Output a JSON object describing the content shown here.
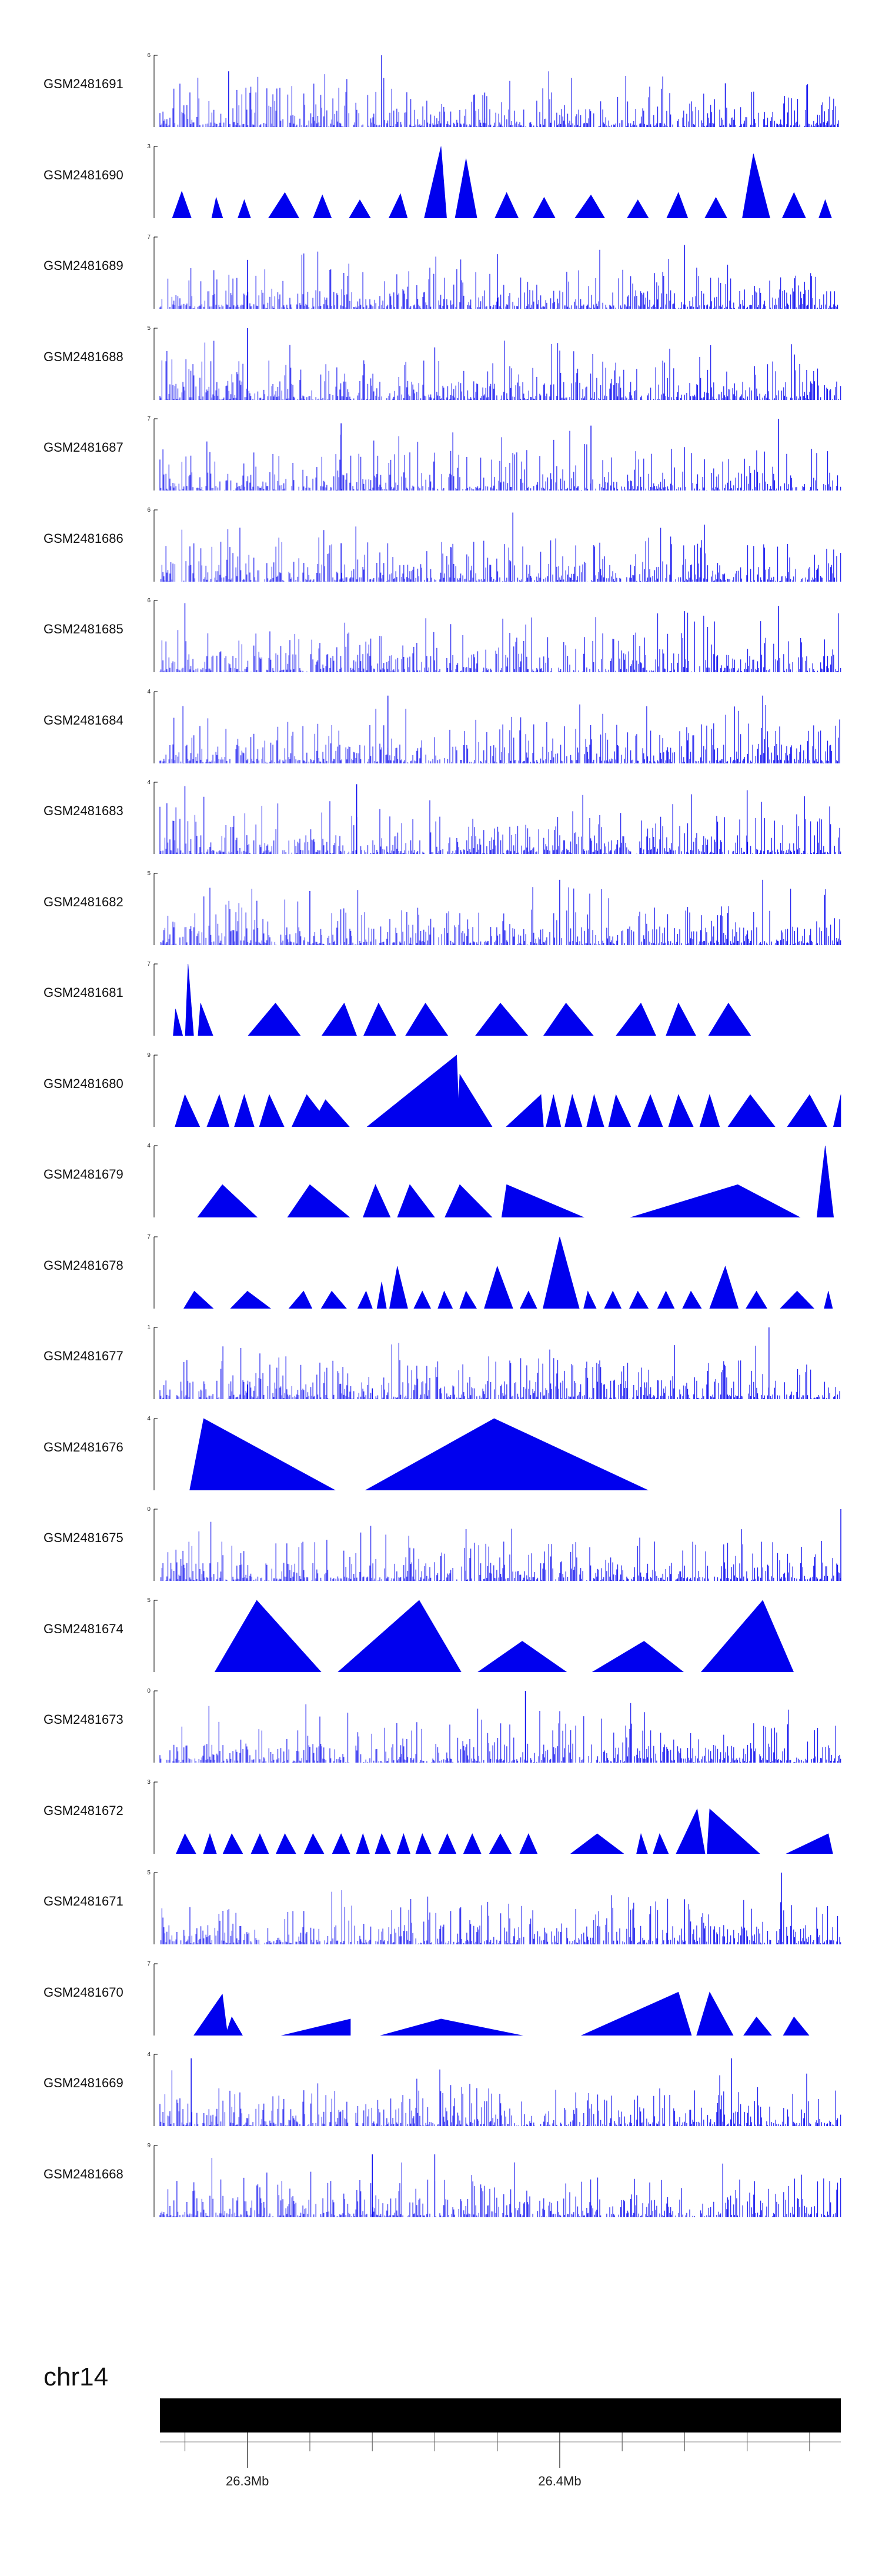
{
  "chromosome": "chr14",
  "colors": {
    "signal": "#0000ee",
    "axis": "#000000",
    "ideogram": "#000000",
    "background": "#ffffff"
  },
  "chart_data": {
    "type": "area",
    "title": "",
    "xlabel": "",
    "ylabel": "",
    "x_unit": "Mb",
    "xlim": [
      26.272,
      26.49
    ],
    "x_ticks": [
      {
        "value": 26.3,
        "label": "26.3Mb"
      },
      {
        "value": 26.4,
        "label": "26.4Mb"
      }
    ],
    "x_minor_ticks": [
      26.28,
      26.32,
      26.34,
      26.36,
      26.38,
      26.42,
      26.44,
      26.46,
      26.48
    ],
    "series": [
      {
        "name": "GSM2481691",
        "ylim": [
          0,
          6
        ],
        "style": "dense",
        "seed": 1,
        "spikes": [
          [
            26.294,
            4.8
          ],
          [
            26.343,
            6.0
          ],
          [
            26.376,
            3.2
          ],
          [
            26.453,
            3.9
          ]
        ]
      },
      {
        "name": "GSM2481690",
        "ylim": [
          0,
          33
        ],
        "style": "triangles",
        "seed": 2,
        "peaks": [
          [
            26.275,
            26.279,
            26.283,
            14.5
          ],
          [
            26.288,
            26.29,
            26.293,
            12.0
          ],
          [
            26.296,
            26.299,
            26.302,
            11.0
          ],
          [
            26.305,
            26.312,
            26.318,
            14.0
          ],
          [
            26.32,
            26.324,
            26.328,
            13.0
          ],
          [
            26.331,
            26.336,
            26.341,
            11.0
          ],
          [
            26.344,
            26.349,
            26.352,
            13.5
          ],
          [
            26.356,
            26.362,
            26.364,
            33.0
          ],
          [
            26.366,
            26.37,
            26.374,
            28.0
          ],
          [
            26.378,
            26.383,
            26.388,
            14.0
          ],
          [
            26.39,
            26.395,
            26.4,
            12.0
          ],
          [
            26.403,
            26.41,
            26.416,
            13.0
          ],
          [
            26.42,
            26.425,
            26.43,
            11.0
          ],
          [
            26.433,
            26.438,
            26.442,
            14.0
          ],
          [
            26.445,
            26.45,
            26.455,
            12.0
          ],
          [
            26.458,
            26.462,
            26.468,
            30.0
          ],
          [
            26.47,
            26.475,
            26.48,
            14.0
          ],
          [
            26.482,
            26.485,
            26.488,
            11.0
          ]
        ]
      },
      {
        "name": "GSM2481689",
        "ylim": [
          0,
          7
        ],
        "style": "dense",
        "seed": 3,
        "spikes": [
          [
            26.3,
            5.0
          ],
          [
            26.38,
            5.5
          ],
          [
            26.44,
            6.3
          ]
        ]
      },
      {
        "name": "GSM2481688",
        "ylim": [
          0,
          5
        ],
        "style": "dense",
        "seed": 4,
        "spikes": [
          [
            26.3,
            5.0
          ],
          [
            26.36,
            3.8
          ]
        ]
      },
      {
        "name": "GSM2481687",
        "ylim": [
          0,
          7
        ],
        "style": "dense",
        "seed": 5,
        "spikes": [
          [
            26.33,
            6.6
          ],
          [
            26.41,
            6.4
          ],
          [
            26.47,
            7.0
          ]
        ]
      },
      {
        "name": "GSM2481686",
        "ylim": [
          0,
          6
        ],
        "style": "dense",
        "seed": 6,
        "spikes": [
          [
            26.385,
            5.8
          ],
          [
            26.33,
            3.5
          ]
        ]
      },
      {
        "name": "GSM2481685",
        "ylim": [
          0,
          6
        ],
        "style": "dense",
        "seed": 7,
        "spikes": [
          [
            26.28,
            5.8
          ],
          [
            26.44,
            5.2
          ],
          [
            26.47,
            5.6
          ]
        ]
      },
      {
        "name": "GSM2481684",
        "ylim": [
          0,
          4
        ],
        "style": "dense",
        "seed": 8,
        "spikes": [
          [
            26.345,
            3.8
          ],
          [
            26.465,
            3.8
          ]
        ]
      },
      {
        "name": "GSM2481683",
        "ylim": [
          0,
          4
        ],
        "style": "dense",
        "seed": 9,
        "spikes": [
          [
            26.28,
            3.8
          ],
          [
            26.335,
            3.9
          ],
          [
            26.46,
            3.6
          ]
        ]
      },
      {
        "name": "GSM2481682",
        "ylim": [
          0,
          5
        ],
        "style": "dense",
        "seed": 10,
        "spikes": [
          [
            26.32,
            3.9
          ],
          [
            26.4,
            4.6
          ],
          [
            26.465,
            4.6
          ]
        ]
      },
      {
        "name": "GSM2481681",
        "ylim": [
          0,
          137
        ],
        "style": "triangles",
        "seed": 11,
        "peaks": [
          [
            26.276,
            26.277,
            26.28,
            60.0
          ],
          [
            26.28,
            26.281,
            26.283,
            137.0
          ],
          [
            26.284,
            26.285,
            26.29,
            70.0
          ],
          [
            26.298,
            26.309,
            26.319,
            70.0
          ],
          [
            26.322,
            26.331,
            26.336,
            70.0
          ],
          [
            26.336,
            26.342,
            26.349,
            70.0
          ],
          [
            26.349,
            26.357,
            26.366,
            70.0
          ],
          [
            26.371,
            26.381,
            26.392,
            70.0
          ],
          [
            26.393,
            26.402,
            26.413,
            70.0
          ],
          [
            26.416,
            26.426,
            26.432,
            70.0
          ],
          [
            26.433,
            26.438,
            26.445,
            70.0
          ],
          [
            26.446,
            26.454,
            26.463,
            70.0
          ]
        ]
      },
      {
        "name": "GSM2481680",
        "ylim": [
          0,
          79
        ],
        "style": "triangles",
        "seed": 12,
        "peaks": [
          [
            26.276,
            26.28,
            26.286,
            40.0
          ],
          [
            26.286,
            26.291,
            26.295,
            40.0
          ],
          [
            26.295,
            26.299,
            26.303,
            40.0
          ],
          [
            26.303,
            26.307,
            26.313,
            40.0
          ],
          [
            26.313,
            26.319,
            26.329,
            40.0
          ],
          [
            26.319,
            26.325,
            26.335,
            35.0
          ],
          [
            26.335,
            26.367,
            26.368,
            79.0
          ],
          [
            26.367,
            26.368,
            26.38,
            60.0
          ],
          [
            26.38,
            26.394,
            26.395,
            40.0
          ],
          [
            26.395,
            26.398,
            26.401,
            40.0
          ],
          [
            26.401,
            26.404,
            26.408,
            40.0
          ],
          [
            26.408,
            26.411,
            26.415,
            40.0
          ],
          [
            26.415,
            26.418,
            26.424,
            40.0
          ],
          [
            26.424,
            26.429,
            26.434,
            40.0
          ],
          [
            26.434,
            26.438,
            26.444,
            40.0
          ],
          [
            26.444,
            26.448,
            26.452,
            40.0
          ],
          [
            26.452,
            26.461,
            26.471,
            40.0
          ],
          [
            26.471,
            26.48,
            26.487,
            40.0
          ],
          [
            26.487,
            26.49,
            26.49,
            40.0
          ]
        ]
      },
      {
        "name": "GSM2481679",
        "ylim": [
          0,
          74
        ],
        "style": "triangles",
        "seed": 13,
        "peaks": [
          [
            26.282,
            26.292,
            26.306,
            38.0
          ],
          [
            26.311,
            26.32,
            26.336,
            38.0
          ],
          [
            26.336,
            26.341,
            26.347,
            38.0
          ],
          [
            26.347,
            26.352,
            26.362,
            38.0
          ],
          [
            26.362,
            26.368,
            26.381,
            38.0
          ],
          [
            26.381,
            26.383,
            26.414,
            38.0
          ],
          [
            26.414,
            26.457,
            26.482,
            38.0
          ],
          [
            26.482,
            26.485,
            26.488,
            74.0
          ]
        ]
      },
      {
        "name": "GSM2481678",
        "ylim": [
          0,
          87
        ],
        "style": "triangles",
        "seed": 14,
        "peaks": [
          [
            26.278,
            26.283,
            26.292,
            28.0
          ],
          [
            26.292,
            26.3,
            26.311,
            28.0
          ],
          [
            26.311,
            26.318,
            26.322,
            28.0
          ],
          [
            26.322,
            26.327,
            26.334,
            28.0
          ],
          [
            26.334,
            26.338,
            26.341,
            28.0
          ],
          [
            26.341,
            26.343,
            26.345,
            38.0
          ],
          [
            26.345,
            26.348,
            26.352,
            55.0
          ],
          [
            26.352,
            26.356,
            26.36,
            28.0
          ],
          [
            26.36,
            26.363,
            26.367,
            28.0
          ],
          [
            26.367,
            26.37,
            26.375,
            28.0
          ],
          [
            26.375,
            26.38,
            26.386,
            55.0
          ],
          [
            26.386,
            26.39,
            26.394,
            28.0
          ],
          [
            26.394,
            26.4,
            26.407,
            87.0
          ],
          [
            26.407,
            26.409,
            26.413,
            28.0
          ],
          [
            26.413,
            26.417,
            26.421,
            28.0
          ],
          [
            26.421,
            26.425,
            26.43,
            28.0
          ],
          [
            26.43,
            26.434,
            26.438,
            28.0
          ],
          [
            26.438,
            26.442,
            26.447,
            28.0
          ],
          [
            26.447,
            26.453,
            26.458,
            55.0
          ],
          [
            26.458,
            26.463,
            26.468,
            28.0
          ],
          [
            26.468,
            26.476,
            26.484,
            28.0
          ],
          [
            26.484,
            26.486,
            26.488,
            28.0
          ]
        ]
      },
      {
        "name": "GSM2481677",
        "ylim": [
          0,
          21
        ],
        "style": "dense",
        "seed": 15,
        "spikes": [
          [
            26.3,
            6.0
          ],
          [
            26.34,
            5.0
          ],
          [
            26.467,
            21.0
          ]
        ]
      },
      {
        "name": "GSM2481676",
        "ylim": [
          0,
          174
        ],
        "style": "triangles",
        "seed": 16,
        "peaks": [
          [
            26.281,
            26.286,
            26.333,
            174.0
          ],
          [
            26.333,
            26.379,
            26.434,
            174.0
          ]
        ]
      },
      {
        "name": "GSM2481675",
        "ylim": [
          0,
          10
        ],
        "style": "dense",
        "seed": 17,
        "spikes": [
          [
            26.49,
            10.0
          ],
          [
            26.37,
            7.5
          ]
        ]
      },
      {
        "name": "GSM2481674",
        "ylim": [
          0,
          235
        ],
        "style": "triangles",
        "seed": 18,
        "peaks": [
          [
            26.288,
            26.303,
            26.326,
            235.0
          ],
          [
            26.326,
            26.355,
            26.37,
            235.0
          ],
          [
            26.37,
            26.388,
            26.406,
            115.0
          ],
          [
            26.406,
            26.427,
            26.443,
            115.0
          ],
          [
            26.443,
            26.465,
            26.476,
            235.0
          ]
        ]
      },
      {
        "name": "GSM2481673",
        "ylim": [
          0,
          20
        ],
        "style": "dense",
        "seed": 19,
        "spikes": [
          [
            26.389,
            20.0
          ],
          [
            26.32,
            6.0
          ]
        ]
      },
      {
        "name": "GSM2481672",
        "ylim": [
          0,
          113
        ],
        "style": "triangles",
        "seed": 20,
        "peaks": [
          [
            26.276,
            26.28,
            26.285,
            40.0
          ],
          [
            26.285,
            26.288,
            26.291,
            40.0
          ],
          [
            26.291,
            26.295,
            26.3,
            40.0
          ],
          [
            26.3,
            26.304,
            26.308,
            40.0
          ],
          [
            26.308,
            26.312,
            26.317,
            40.0
          ],
          [
            26.317,
            26.321,
            26.326,
            40.0
          ],
          [
            26.326,
            26.33,
            26.334,
            40.0
          ],
          [
            26.334,
            26.337,
            26.34,
            40.0
          ],
          [
            26.34,
            26.343,
            26.347,
            40.0
          ],
          [
            26.347,
            26.35,
            26.353,
            40.0
          ],
          [
            26.353,
            26.356,
            26.36,
            40.0
          ],
          [
            26.36,
            26.364,
            26.368,
            40.0
          ],
          [
            26.368,
            26.372,
            26.376,
            40.0
          ],
          [
            26.376,
            26.381,
            26.386,
            40.0
          ],
          [
            26.386,
            26.39,
            26.394,
            40.0
          ],
          [
            26.4,
            26.412,
            26.424,
            40.0
          ],
          [
            26.424,
            26.426,
            26.429,
            40.0
          ],
          [
            26.429,
            26.432,
            26.436,
            40.0
          ],
          [
            26.436,
            26.444,
            26.447,
            75.0
          ],
          [
            26.447,
            26.448,
            26.467,
            75.0
          ],
          [
            26.467,
            26.486,
            26.488,
            40.0
          ]
        ]
      },
      {
        "name": "GSM2481671",
        "ylim": [
          0,
          15
        ],
        "style": "dense",
        "seed": 21,
        "spikes": [
          [
            26.471,
            15.0
          ],
          [
            26.44,
            10.0
          ]
        ]
      },
      {
        "name": "GSM2481670",
        "ylim": [
          0,
          387
        ],
        "style": "triangles",
        "seed": 22,
        "peaks": [
          [
            26.281,
            26.292,
            26.294,
            240.0
          ],
          [
            26.292,
            26.295,
            26.3,
            130.0
          ],
          [
            26.3,
            26.333,
            26.333,
            120.0
          ],
          [
            26.333,
            26.362,
            26.401,
            120.0
          ],
          [
            26.401,
            26.438,
            26.443,
            250.0
          ],
          [
            26.443,
            26.448,
            26.457,
            250.0
          ],
          [
            26.457,
            26.463,
            26.47,
            130.0
          ],
          [
            26.47,
            26.475,
            26.482,
            130.0
          ]
        ]
      },
      {
        "name": "GSM2481669",
        "ylim": [
          0,
          4
        ],
        "style": "dense",
        "seed": 23,
        "spikes": [
          [
            26.282,
            3.8
          ],
          [
            26.455,
            3.8
          ]
        ]
      },
      {
        "name": "GSM2481668",
        "ylim": [
          0,
          9
        ],
        "style": "dense",
        "seed": 24,
        "spikes": [
          [
            26.34,
            8.0
          ],
          [
            26.36,
            8.0
          ]
        ]
      }
    ]
  }
}
